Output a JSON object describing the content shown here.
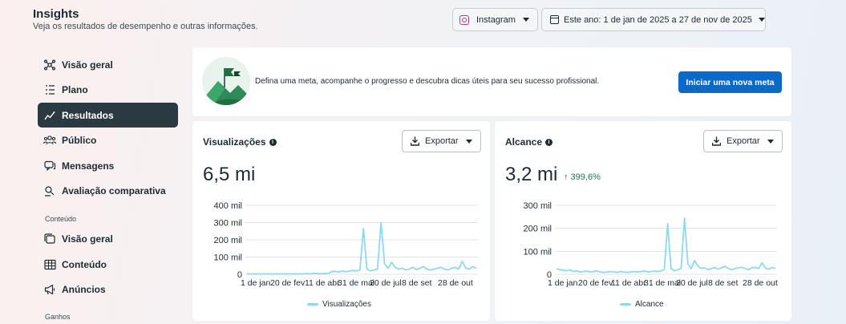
{
  "header": {
    "title": "Insights",
    "subtitle": "Veja os resultados de desempenho e outras informações.",
    "platform": "Instagram",
    "date_range": "Este ano: 1 de jan de 2025 a 27 de nov de 2025"
  },
  "sidebar": {
    "items": [
      {
        "label": "Visão geral",
        "icon": "network-icon"
      },
      {
        "label": "Plano",
        "icon": "list-icon"
      },
      {
        "label": "Resultados",
        "icon": "trend-icon",
        "active": true
      },
      {
        "label": "Público",
        "icon": "people-icon"
      },
      {
        "label": "Mensagens",
        "icon": "chat-icon"
      },
      {
        "label": "Avaliação comparativa",
        "icon": "compare-icon"
      }
    ],
    "section_content": "Conteúdo",
    "content_items": [
      {
        "label": "Visão geral",
        "icon": "stack-icon"
      },
      {
        "label": "Conteúdo",
        "icon": "grid-icon"
      },
      {
        "label": "Anúncios",
        "icon": "megaphone-icon"
      }
    ],
    "section_earnings": "Ganhos"
  },
  "goal": {
    "text": "Defina uma meta, acompanhe o progresso e descubra dicas úteis para seu sucesso profissional.",
    "button": "Iniciar uma nova meta"
  },
  "colors": {
    "accent": "#0b69c7",
    "series": "#8fd8f0",
    "active_nav": "#2b3a42",
    "positive": "#1e7a46"
  },
  "metrics": [
    {
      "title": "Visualizações",
      "export": "Exportar",
      "value": "6,5 mi",
      "delta": "",
      "legend": "Visualizações"
    },
    {
      "title": "Alcance",
      "export": "Exportar",
      "value": "3,2 mi",
      "delta": "↑ 399,6%",
      "legend": "Alcance"
    }
  ],
  "chart_data": [
    {
      "type": "line",
      "title": "Visualizações",
      "x_ticks": [
        "1 de jan",
        "20 de fev",
        "11 de abr",
        "31 de mai",
        "20 de jul",
        "8 de set",
        "28 de out"
      ],
      "y_ticks": [
        "0",
        "100 mil",
        "200 mil",
        "300 mil",
        "400 mil"
      ],
      "ylim": [
        0,
        400000
      ],
      "grid": true,
      "legend": "bottom",
      "series": [
        {
          "name": "Visualizações",
          "values": [
            3000,
            2000,
            2500,
            3000,
            2000,
            2500,
            3000,
            2500,
            2000,
            3000,
            2500,
            3000,
            2000,
            2500,
            3000,
            2500,
            3000,
            4000,
            3000,
            5000,
            4000,
            3000,
            5000,
            4000,
            15000,
            18000,
            12000,
            20000,
            15000,
            18000,
            22000,
            20000,
            25000,
            265000,
            30000,
            20000,
            25000,
            30000,
            300000,
            60000,
            35000,
            70000,
            40000,
            30000,
            35000,
            25000,
            30000,
            40000,
            28000,
            35000,
            45000,
            30000,
            25000,
            30000,
            35000,
            40000,
            30000,
            25000,
            35000,
            40000,
            30000,
            75000,
            35000,
            30000,
            45000,
            35000
          ]
        }
      ]
    },
    {
      "type": "line",
      "title": "Alcance",
      "x_ticks": [
        "1 de jan",
        "20 de fev",
        "11 de abr",
        "31 de mai",
        "20 de jul",
        "8 de set",
        "28 de out"
      ],
      "y_ticks": [
        "0",
        "100 mil",
        "200 mil",
        "300 mil"
      ],
      "ylim": [
        0,
        300000
      ],
      "grid": true,
      "legend": "bottom",
      "series": [
        {
          "name": "Alcance",
          "values": [
            25000,
            20000,
            18000,
            15000,
            20000,
            12000,
            15000,
            10000,
            12000,
            14000,
            10000,
            12000,
            15000,
            10000,
            8000,
            10000,
            12000,
            10000,
            8000,
            12000,
            10000,
            8000,
            10000,
            12000,
            10000,
            12000,
            15000,
            10000,
            12000,
            14000,
            12000,
            15000,
            20000,
            220000,
            25000,
            15000,
            20000,
            25000,
            245000,
            45000,
            25000,
            60000,
            35000,
            25000,
            28000,
            20000,
            25000,
            30000,
            22000,
            28000,
            35000,
            25000,
            20000,
            25000,
            28000,
            30000,
            25000,
            20000,
            28000,
            30000,
            25000,
            50000,
            28000,
            22000,
            30000,
            25000
          ]
        }
      ]
    }
  ]
}
